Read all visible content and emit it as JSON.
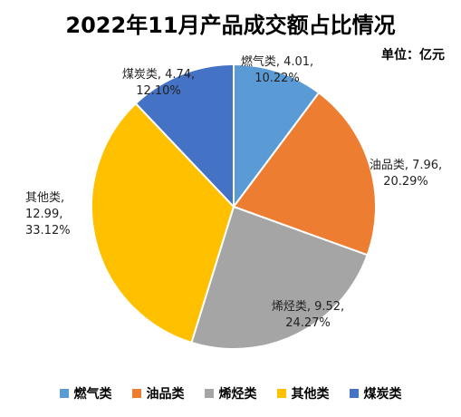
{
  "chart_data": {
    "type": "pie",
    "title": "2022年11月产品成交额占比情况",
    "unit_label": "单位：亿元",
    "categories": [
      "燃气类",
      "油品类",
      "烯烃类",
      "其他类",
      "煤炭类"
    ],
    "values": [
      4.01,
      7.96,
      9.52,
      12.99,
      4.74
    ],
    "value_labels": [
      "4.01",
      "7.96",
      "9.52",
      "12.99",
      "4.74"
    ],
    "percent_labels": [
      "10.22%",
      "20.29%",
      "24.27%",
      "33.12%",
      "12.10%"
    ],
    "colors": [
      "#5b9bd5",
      "#ed7d31",
      "#a5a5a5",
      "#ffc000",
      "#4472c4"
    ],
    "legend": "bottom"
  }
}
